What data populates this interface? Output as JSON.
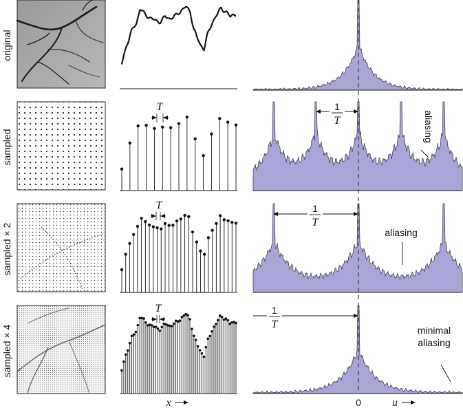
{
  "rows": [
    {
      "label": "original"
    },
    {
      "label": "sampled"
    },
    {
      "label": "sampled × 2"
    },
    {
      "label": "sampled × 4"
    }
  ],
  "period_symbol": "T",
  "reciprocal": {
    "numerator": "1",
    "denominator": "T"
  },
  "annotations": {
    "aliasing_vertical": "aliasing",
    "aliasing": "aliasing",
    "minimal_line1": "minimal",
    "minimal_line2": "aliasing"
  },
  "x_axis_label": "x",
  "u_axis_label": "u",
  "zero_tick": "0",
  "colors": {
    "spectrum_fill": "#a9a5d6",
    "spectrum_line": "#333333",
    "ink": "#111111"
  }
}
